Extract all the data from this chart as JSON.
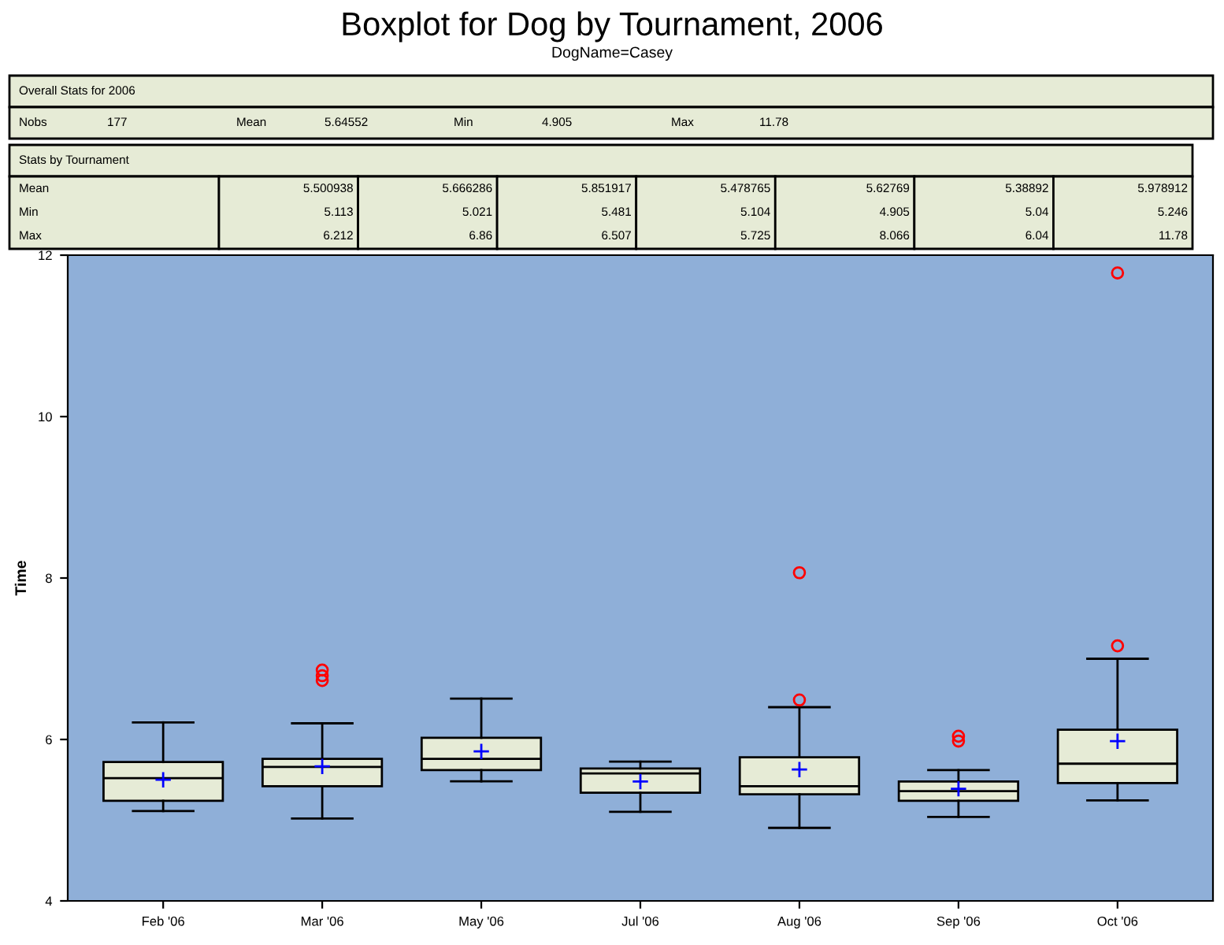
{
  "chart_data": {
    "type": "box",
    "title": "Boxplot for Dog by Tournament, 2006",
    "subtitle": "DogName=Casey",
    "ylabel": "Time",
    "categories": [
      "Feb '06",
      "Mar '06",
      "May '06",
      "Jul '06",
      "Aug '06",
      "Sep '06",
      "Oct '06"
    ],
    "ylim": [
      4,
      12
    ],
    "yticks": [
      4,
      6,
      8,
      10,
      12
    ],
    "grid": false,
    "series": [
      {
        "color": "#e6ebd6",
        "boxes": [
          {
            "low": 5.113,
            "q1": 5.24,
            "median": 5.52,
            "q3": 5.72,
            "high": 6.212,
            "mean": 5.500938
          },
          {
            "low": 5.021,
            "q1": 5.42,
            "median": 5.66,
            "q3": 5.76,
            "high": 6.2,
            "mean": 5.666286,
            "outliers": [
              6.86,
              6.79,
              6.73
            ]
          },
          {
            "low": 5.481,
            "q1": 5.62,
            "median": 5.76,
            "q3": 6.02,
            "high": 6.507,
            "mean": 5.851917
          },
          {
            "low": 5.104,
            "q1": 5.34,
            "median": 5.58,
            "q3": 5.64,
            "high": 5.725,
            "mean": 5.478765
          },
          {
            "low": 4.905,
            "q1": 5.32,
            "median": 5.42,
            "q3": 5.78,
            "high": 6.4,
            "mean": 5.62769,
            "outliers": [
              6.49,
              8.066
            ]
          },
          {
            "low": 5.04,
            "q1": 5.24,
            "median": 5.36,
            "q3": 5.48,
            "high": 5.62,
            "mean": 5.38892,
            "outliers": [
              6.04,
              5.98
            ]
          },
          {
            "low": 5.246,
            "q1": 5.46,
            "median": 5.7,
            "q3": 6.12,
            "high": 7.0,
            "mean": 5.978912,
            "outliers": [
              7.16,
              11.78
            ]
          }
        ]
      }
    ],
    "annotations": [
      "Overall Stats for 2006",
      "Nobs",
      "177",
      "Mean",
      "5.64552",
      "Min",
      "4.905",
      "Max",
      "11.78",
      "Stats by Tournament",
      "Mean",
      "5.500938",
      "5.666286",
      "5.851917",
      "5.478765",
      "5.62769",
      "5.38892",
      "5.978912",
      "Min",
      "5.113",
      "5.021",
      "5.481",
      "5.104",
      "4.905",
      "5.04",
      "5.246",
      "Max",
      "6.212",
      "6.86",
      "6.507",
      "5.725",
      "8.066",
      "6.04",
      "11.78"
    ]
  }
}
